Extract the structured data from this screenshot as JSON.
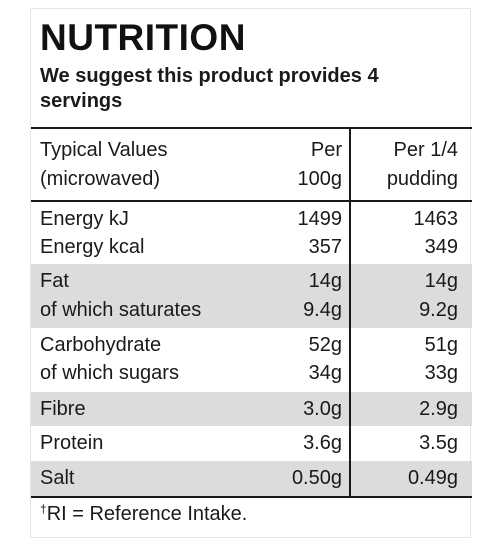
{
  "title": "NUTRITION",
  "subtitle": "We suggest this product provides 4 servings",
  "table": {
    "headers": {
      "col1_line1": "Typical Values",
      "col1_line2": "(microwaved)",
      "col2_line1": "Per",
      "col2_line2": "100g",
      "col3_line1": "Per 1/4",
      "col3_line2": "pudding"
    },
    "rows": [
      {
        "label": "Energy kJ",
        "per100": "1499",
        "perServing": "1463"
      },
      {
        "label": "Energy kcal",
        "per100": "357",
        "perServing": "349"
      },
      {
        "label": "Fat",
        "per100": "14g",
        "perServing": "14g"
      },
      {
        "label": "of which saturates",
        "per100": "9.4g",
        "perServing": "9.2g"
      },
      {
        "label": "Carbohydrate",
        "per100": "52g",
        "perServing": "51g"
      },
      {
        "label": "of which sugars",
        "per100": "34g",
        "perServing": "33g"
      },
      {
        "label": "Fibre",
        "per100": "3.0g",
        "perServing": "2.9g"
      },
      {
        "label": "Protein",
        "per100": "3.6g",
        "perServing": "3.5g"
      },
      {
        "label": "Salt",
        "per100": "0.50g",
        "perServing": "0.49g"
      }
    ]
  },
  "footnote": {
    "dagger": "†",
    "text": "RI = Reference Intake."
  },
  "colors": {
    "shade": "#dcdcdc",
    "rule": "#1a1a1a",
    "text": "#1a1a1a"
  }
}
